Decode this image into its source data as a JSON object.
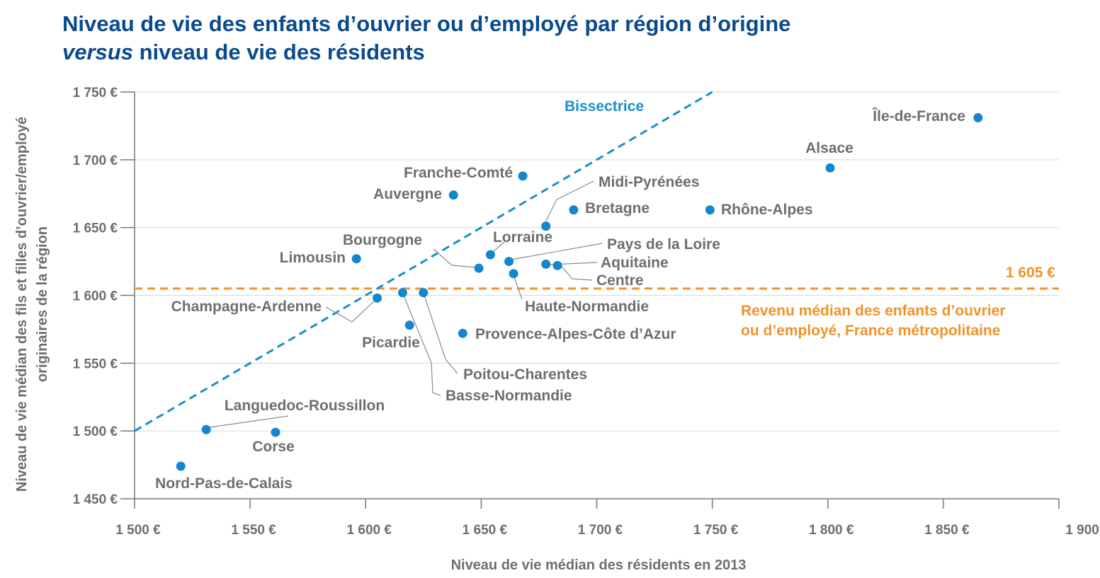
{
  "title": {
    "line1": "Niveau de vie des enfants d’ouvrier ou d’employé par région d’origine",
    "line2_em": "versus",
    "line2_rest": " niveau de vie des résidents"
  },
  "colors": {
    "title": "#0a4a8c",
    "point": "#1287cf",
    "diagonal": "#1a8fcb",
    "reference": "#f0932b",
    "text": "#6d6e70",
    "grid": "#d9d9d9"
  },
  "chart_data": {
    "type": "scatter",
    "xlabel": "Niveau de vie médian des résidents en 2013",
    "ylabel_lines": [
      "Niveau de vie médian des fils et filles d’ouvrier/employé",
      "originaires de la région"
    ],
    "xlim": [
      1500,
      1900
    ],
    "ylim": [
      1450,
      1750
    ],
    "x_ticks": [
      1500,
      1550,
      1600,
      1650,
      1700,
      1750,
      1800,
      1850,
      1900
    ],
    "x_tick_labels": [
      "1 500 €",
      "1 550 €",
      "1 600 €",
      "1 650 €",
      "1 700 €",
      "1 750 €",
      "1 800 €",
      "1 850 €",
      "1 900 €"
    ],
    "y_ticks": [
      1450,
      1500,
      1550,
      1600,
      1650,
      1700,
      1750
    ],
    "y_tick_labels": [
      "1 450 €",
      "1 500 €",
      "1 550 €",
      "1 600 €",
      "1 650 €",
      "1 700 €",
      "1 750 €"
    ],
    "grid": "horizontal",
    "points": [
      {
        "name": "Île-de-France",
        "x": 1865,
        "y": 1731
      },
      {
        "name": "Alsace",
        "x": 1801,
        "y": 1694
      },
      {
        "name": "Rhône-Alpes",
        "x": 1749,
        "y": 1663
      },
      {
        "name": "Bretagne",
        "x": 1690,
        "y": 1663
      },
      {
        "name": "Midi-Pyrénées",
        "x": 1678,
        "y": 1651
      },
      {
        "name": "Franche-Comté",
        "x": 1668,
        "y": 1688
      },
      {
        "name": "Auvergne",
        "x": 1638,
        "y": 1674
      },
      {
        "name": "Lorraine",
        "x": 1654,
        "y": 1630
      },
      {
        "name": "Pays de la Loire",
        "x": 1662,
        "y": 1625
      },
      {
        "name": "Aquitaine",
        "x": 1678,
        "y": 1623
      },
      {
        "name": "Centre",
        "x": 1683,
        "y": 1622
      },
      {
        "name": "Haute-Normandie",
        "x": 1664,
        "y": 1616
      },
      {
        "name": "Bourgogne",
        "x": 1649,
        "y": 1620
      },
      {
        "name": "Limousin",
        "x": 1596,
        "y": 1627
      },
      {
        "name": "Champagne-Ardenne",
        "x": 1605,
        "y": 1598
      },
      {
        "name": "Basse-Normandie",
        "x": 1616,
        "y": 1602
      },
      {
        "name": "Poitou-Charentes",
        "x": 1625,
        "y": 1602
      },
      {
        "name": "Picardie",
        "x": 1619,
        "y": 1578
      },
      {
        "name": "Provence-Alpes-Côte d’Azur",
        "x": 1642,
        "y": 1572
      },
      {
        "name": "Languedoc-Roussillon",
        "x": 1531,
        "y": 1501
      },
      {
        "name": "Corse",
        "x": 1561,
        "y": 1499
      },
      {
        "name": "Nord-Pas-de-Calais",
        "x": 1520,
        "y": 1474
      }
    ],
    "diagonal": {
      "label": "Bissectrice",
      "from": 1500,
      "to": 1750
    },
    "reference_line": {
      "y": 1605,
      "value_label": "1 605 €",
      "label_lines": [
        "Revenu médian des enfants d’ouvrier",
        "ou d’employé, France métropolitaine"
      ]
    }
  }
}
